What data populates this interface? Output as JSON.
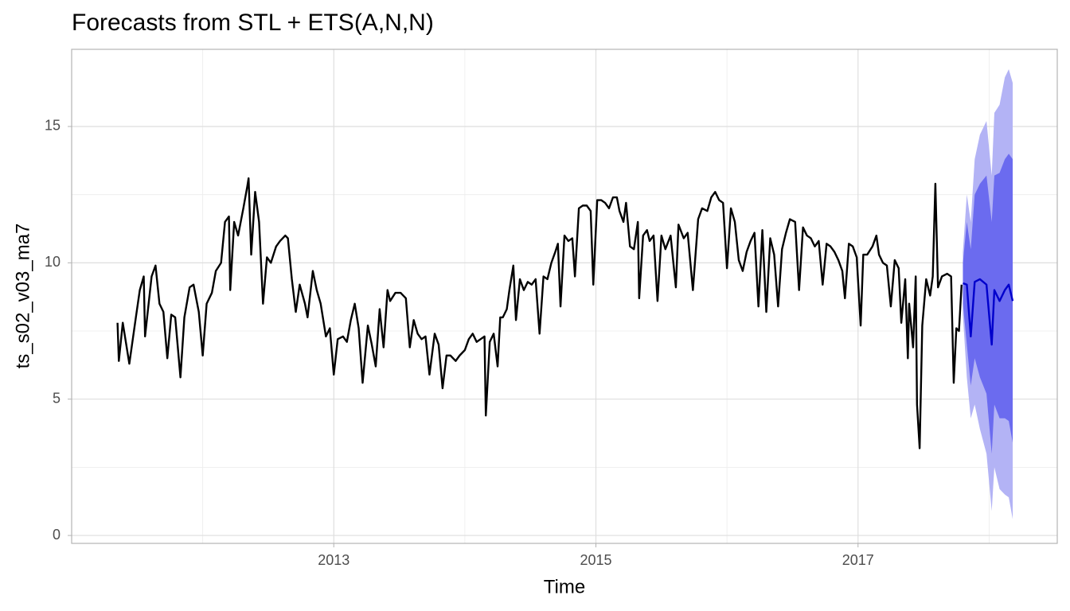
{
  "chart_data": {
    "type": "line",
    "title": "Forecasts from STL +  ETS(A,N,N)",
    "x_label": "Time",
    "y_label": "ts_s02_v03_ma7",
    "xlim": [
      2011.0,
      2018.52
    ],
    "ylim": [
      -0.29,
      17.83
    ],
    "xticks": [
      2013,
      2015,
      2017
    ],
    "yticks": [
      0,
      5,
      10,
      15
    ],
    "minor_xticks": [
      2012,
      2014,
      2016,
      2018
    ],
    "minor_yticks": [
      2.5,
      7.5,
      12.5
    ],
    "grid": true,
    "x": [
      2011.35,
      2011.36,
      2011.39,
      2011.44,
      2011.49,
      2011.52,
      2011.55,
      2011.56,
      2011.61,
      2011.64,
      2011.67,
      2011.7,
      2011.73,
      2011.76,
      2011.79,
      2011.83,
      2011.86,
      2011.9,
      2011.93,
      2011.97,
      2012.0,
      2012.03,
      2012.07,
      2012.1,
      2012.14,
      2012.17,
      2012.2,
      2012.21,
      2012.24,
      2012.27,
      2012.31,
      2012.34,
      2012.35,
      2012.37,
      2012.4,
      2012.43,
      2012.46,
      2012.49,
      2012.52,
      2012.56,
      2012.59,
      2012.63,
      2012.65,
      2012.68,
      2012.71,
      2012.74,
      2012.78,
      2012.8,
      2012.84,
      2012.87,
      2012.9,
      2012.94,
      2012.97,
      2013.0,
      2013.03,
      2013.07,
      2013.1,
      2013.13,
      2013.16,
      2013.19,
      2013.22,
      2013.26,
      2013.29,
      2013.32,
      2013.35,
      2013.38,
      2013.41,
      2013.43,
      2013.47,
      2013.51,
      2013.55,
      2013.58,
      2013.61,
      2013.64,
      2013.67,
      2013.7,
      2013.73,
      2013.77,
      2013.8,
      2013.83,
      2013.86,
      2013.89,
      2013.93,
      2013.96,
      2014.0,
      2014.03,
      2014.06,
      2014.09,
      2014.12,
      2014.15,
      2014.16,
      2014.19,
      2014.22,
      2014.25,
      2014.27,
      2014.29,
      2014.32,
      2014.34,
      2014.37,
      2014.39,
      2014.42,
      2014.45,
      2014.48,
      2014.51,
      2014.54,
      2014.57,
      2014.6,
      2014.63,
      2014.66,
      2014.69,
      2014.71,
      2014.73,
      2014.76,
      2014.79,
      2014.82,
      2014.84,
      2014.87,
      2014.9,
      2014.93,
      2014.96,
      2014.98,
      2015.01,
      2015.04,
      2015.07,
      2015.1,
      2015.13,
      2015.16,
      2015.18,
      2015.21,
      2015.23,
      2015.26,
      2015.29,
      2015.32,
      2015.33,
      2015.36,
      2015.39,
      2015.41,
      2015.44,
      2015.47,
      2015.5,
      2015.53,
      2015.57,
      2015.61,
      2015.63,
      2015.67,
      2015.7,
      2015.74,
      2015.78,
      2015.81,
      2015.85,
      2015.88,
      2015.91,
      2015.94,
      2015.97,
      2016.0,
      2016.03,
      2016.06,
      2016.09,
      2016.12,
      2016.15,
      2016.18,
      2016.21,
      2016.24,
      2016.27,
      2016.3,
      2016.33,
      2016.36,
      2016.39,
      2016.42,
      2016.45,
      2016.48,
      2016.52,
      2016.55,
      2016.58,
      2016.61,
      2016.64,
      2016.67,
      2016.7,
      2016.73,
      2016.76,
      2016.79,
      2016.82,
      2016.85,
      2016.88,
      2016.9,
      2016.93,
      2016.96,
      2016.99,
      2017.02,
      2017.04,
      2017.07,
      2017.11,
      2017.14,
      2017.16,
      2017.19,
      2017.22,
      2017.25,
      2017.28,
      2017.31,
      2017.33,
      2017.36,
      2017.38,
      2017.39,
      2017.42,
      2017.44,
      2017.45,
      2017.47,
      2017.49,
      2017.52,
      2017.55,
      2017.57,
      2017.59,
      2017.61,
      2017.64,
      2017.68,
      2017.71,
      2017.73,
      2017.75,
      2017.77,
      2017.79
    ],
    "series": [
      {
        "color": "#000000",
        "values": [
          7.8,
          6.4,
          7.8,
          6.3,
          8.0,
          9.0,
          9.5,
          7.3,
          9.5,
          9.9,
          8.5,
          8.2,
          6.5,
          8.1,
          8.0,
          5.8,
          8.0,
          9.1,
          9.2,
          8.2,
          6.6,
          8.5,
          8.9,
          9.7,
          10.0,
          11.5,
          11.7,
          9.0,
          11.5,
          11.0,
          12.0,
          12.8,
          13.1,
          10.3,
          12.6,
          11.5,
          8.5,
          10.2,
          10.0,
          10.6,
          10.8,
          11.0,
          10.9,
          9.4,
          8.2,
          9.2,
          8.5,
          8.0,
          9.7,
          9.0,
          8.5,
          7.3,
          7.6,
          5.9,
          7.2,
          7.3,
          7.1,
          7.9,
          8.5,
          7.6,
          5.6,
          7.7,
          7.0,
          6.2,
          8.3,
          6.9,
          9.0,
          8.6,
          8.9,
          8.9,
          8.7,
          6.9,
          7.9,
          7.4,
          7.2,
          7.3,
          5.9,
          7.4,
          7.0,
          5.4,
          6.6,
          6.6,
          6.4,
          6.6,
          6.8,
          7.2,
          7.4,
          7.1,
          7.2,
          7.3,
          4.4,
          7.1,
          7.4,
          6.2,
          8.0,
          8.0,
          8.3,
          9.0,
          9.9,
          7.9,
          9.4,
          9.0,
          9.3,
          9.2,
          9.4,
          7.4,
          9.5,
          9.4,
          10.0,
          10.4,
          10.7,
          8.4,
          11.0,
          10.8,
          10.9,
          9.5,
          12.0,
          12.1,
          12.1,
          11.9,
          9.2,
          12.3,
          12.3,
          12.2,
          12.0,
          12.4,
          12.4,
          11.9,
          11.5,
          12.2,
          10.6,
          10.5,
          11.5,
          8.7,
          11.0,
          11.2,
          10.8,
          11.0,
          8.6,
          11.0,
          10.5,
          11.0,
          9.1,
          11.4,
          10.9,
          11.1,
          9.0,
          11.6,
          12.0,
          11.9,
          12.4,
          12.6,
          12.3,
          12.2,
          9.8,
          12.0,
          11.5,
          10.1,
          9.7,
          10.4,
          10.8,
          11.1,
          8.4,
          11.2,
          8.2,
          10.9,
          10.3,
          8.4,
          10.5,
          11.1,
          11.6,
          11.5,
          9.0,
          11.3,
          11.0,
          10.9,
          10.6,
          10.8,
          9.2,
          10.7,
          10.6,
          10.4,
          10.1,
          9.7,
          8.7,
          10.7,
          10.6,
          10.2,
          7.7,
          10.3,
          10.3,
          10.6,
          11.0,
          10.3,
          10.0,
          9.9,
          8.4,
          10.1,
          9.8,
          7.8,
          9.4,
          6.5,
          8.5,
          6.9,
          9.5,
          4.8,
          3.2,
          7.7,
          9.4,
          8.8,
          9.5,
          12.9,
          9.1,
          9.5,
          9.6,
          9.5,
          5.6,
          7.6,
          7.5,
          9.2
        ]
      }
    ],
    "forecast": {
      "color": "#0000cc",
      "color80": "#6b6bef",
      "color95": "#b3b3f5",
      "x": [
        2017.8,
        2017.83,
        2017.86,
        2017.89,
        2017.93,
        2017.98,
        2018.02,
        2018.04,
        2018.08,
        2018.12,
        2018.15,
        2018.18
      ],
      "mean": [
        9.25,
        9.2,
        7.3,
        9.3,
        9.4,
        9.2,
        7.0,
        9.0,
        8.6,
        9.0,
        9.2,
        8.6
      ],
      "lo80": [
        8.5,
        7.0,
        5.5,
        6.5,
        5.8,
        5.2,
        3.0,
        4.8,
        4.3,
        4.3,
        4.2,
        3.4
      ],
      "hi80": [
        10.0,
        11.5,
        10.5,
        12.5,
        12.9,
        13.2,
        11.5,
        13.2,
        13.3,
        13.8,
        14.0,
        13.8
      ],
      "lo95": [
        8.1,
        5.8,
        4.3,
        4.8,
        3.9,
        3.0,
        0.9,
        2.5,
        1.7,
        1.5,
        1.4,
        0.6
      ],
      "hi95": [
        10.4,
        12.5,
        11.5,
        13.8,
        14.7,
        15.2,
        13.2,
        15.5,
        15.8,
        16.8,
        17.1,
        16.6
      ]
    }
  }
}
